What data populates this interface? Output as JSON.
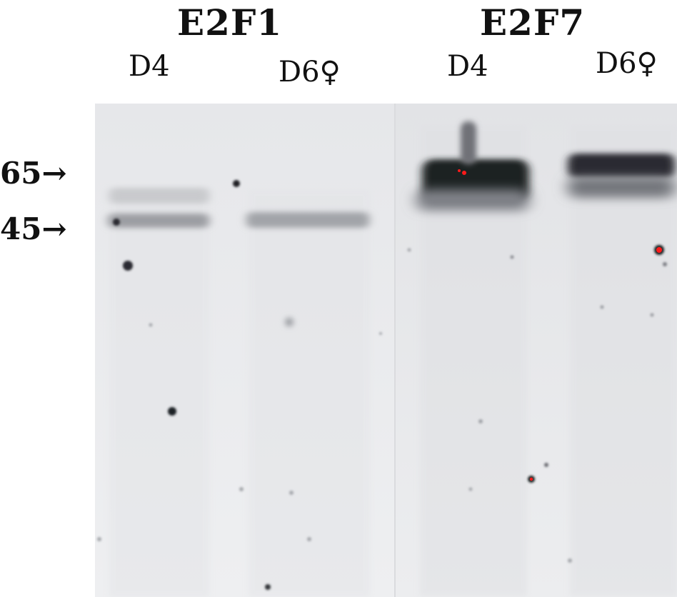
{
  "groups": [
    {
      "title": "E2F1",
      "lanes": [
        "D4",
        "D6♀"
      ]
    },
    {
      "title": "E2F7",
      "lanes": [
        "D4",
        "D6♀"
      ]
    }
  ],
  "markers": [
    {
      "label": "65→"
    },
    {
      "label": "45→"
    }
  ],
  "colors": {
    "membrane": "#ebecee",
    "band": "#1c1e22",
    "saturated": "#ff1a1a"
  }
}
